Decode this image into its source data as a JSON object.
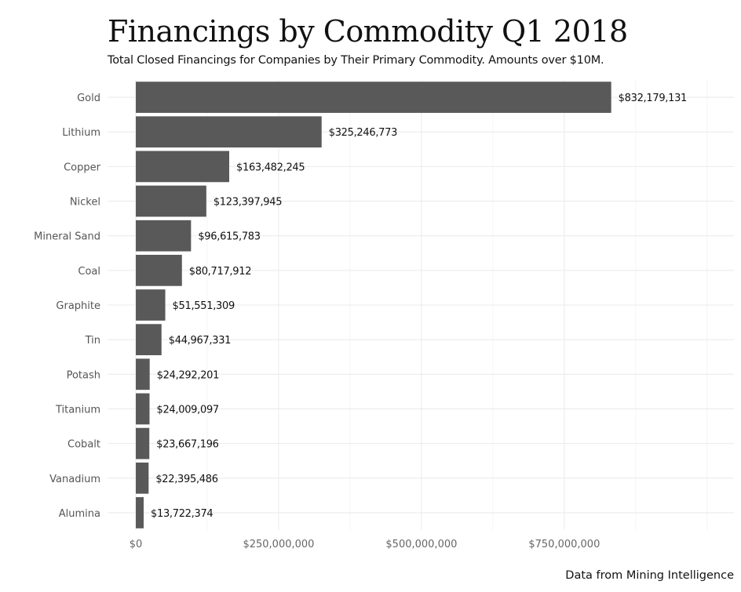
{
  "chart_data": {
    "type": "bar",
    "orientation": "horizontal",
    "title": "Financings by Commodity Q1 2018",
    "subtitle": "Total Closed Financings for Companies by Their Primary Commodity. Amounts over $10M.",
    "caption": "Data from Mining Intelligence",
    "xlabel": "",
    "ylabel": "",
    "categories": [
      "Gold",
      "Lithium",
      "Copper",
      "Nickel",
      "Mineral Sand",
      "Coal",
      "Graphite",
      "Tin",
      "Potash",
      "Titanium",
      "Cobalt",
      "Vanadium",
      "Alumina"
    ],
    "values": [
      832179131,
      325246773,
      163482245,
      123397945,
      96615783,
      80717912,
      51551309,
      44967331,
      24292201,
      24009097,
      23667196,
      22395486,
      13722374
    ],
    "data_labels": [
      "$832,179,131",
      "$325,246,773",
      "$163,482,245",
      "$123,397,945",
      "$96,615,783",
      "$80,717,912",
      "$51,551,309",
      "$44,967,331",
      "$24,292,201",
      "$24,009,097",
      "$23,667,196",
      "$22,395,486",
      "$13,722,374"
    ],
    "x_ticks": [
      0,
      250000000,
      500000000,
      750000000
    ],
    "x_tick_labels": [
      "$0",
      "$250,000,000",
      "$500,000,000",
      "$750,000,000"
    ],
    "xlim": [
      -49500000,
      1047000000
    ],
    "grid": true,
    "legend": "none",
    "bar_color": "#595959"
  }
}
